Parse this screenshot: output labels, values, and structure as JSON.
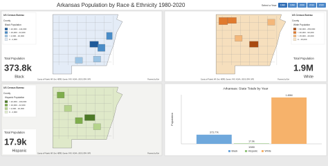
{
  "header": {
    "title": "Arkansas Population by Race & Ethnicity 1980-2020",
    "year_label": "Select a Year:",
    "years": [
      "1980",
      "1990",
      "2000",
      "2010",
      "2020"
    ]
  },
  "maps": [
    {
      "source": "US Census Bureau",
      "layer": "County",
      "legend_title": "Black Population",
      "classes": [
        "> 22,000 - 144,000",
        "> 10,000 - 22,000",
        "> 2,000 - 10,000",
        "0 - 2,000"
      ],
      "stat_label": "Total Population",
      "stat_value": "373.8k",
      "stat_name": "Black",
      "attribution": "County of Pulaski, AR, Esri, HERE, Garmin, FAO, NOAA, USGS, EPA, NPS",
      "powered": "Powered by Esri"
    },
    {
      "source": "US Census Bureau",
      "layer": "County",
      "legend_title": "White Population",
      "classes": [
        "> 90,000 - 250,000",
        "> 40,000 - 90,000",
        "> 15,000 - 40,000",
        "0 - 15,000"
      ],
      "stat_label": "Total Population",
      "stat_value": "1.9M",
      "stat_name": "White",
      "attribution": "County of Pulaski, AR, Esri, HERE, Garmin, FAO, NOAA, USGS, EPA, NPS",
      "powered": "Powered by Esri"
    },
    {
      "source": "US Census Bureau",
      "layer": "County",
      "legend_title": "Hispanic Population",
      "classes": [
        "> 22,000 - 100,000",
        "> 10,000 - 22,000",
        "> 2,000 - 10,000",
        "0 - 2,000"
      ],
      "stat_label": "Total Population",
      "stat_value": "17.9k",
      "stat_name": "Hispanic",
      "attribution": "County of Pulaski, AR, Esri, HERE, Garmin, FAO, NOAA, USGS, EPA, NPS",
      "powered": "Powered by Esri"
    }
  ],
  "chart_data": {
    "type": "bar",
    "title": "Arkansas: State Totals by Year",
    "y_label": "Population",
    "categories": [
      "1980"
    ],
    "series": [
      {
        "name": "Black",
        "color": "#6fa8dc",
        "values": [
          373770
        ],
        "value_labels": [
          "373.77k"
        ]
      },
      {
        "name": "Hispanic",
        "color": "#93c47d",
        "values": [
          17900
        ],
        "value_labels": [
          "17.9k"
        ]
      },
      {
        "name": "White",
        "color": "#f6b26b",
        "values": [
          1890000
        ],
        "value_labels": [
          "1.89M"
        ]
      }
    ],
    "ylim": [
      0,
      2000000
    ]
  }
}
